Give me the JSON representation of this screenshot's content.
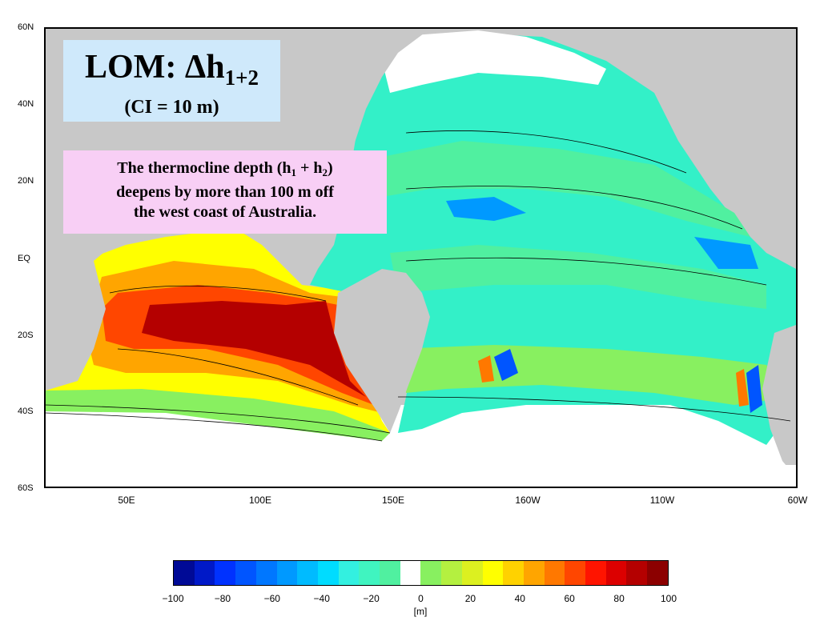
{
  "map": {
    "lat_labels": [
      "60N",
      "40N",
      "20N",
      "EQ",
      "20S",
      "40S",
      "60S"
    ],
    "lon_labels": [
      "50E",
      "100E",
      "150E",
      "160W",
      "110W",
      "60W"
    ]
  },
  "title_box": {
    "main": "LOM: Δh",
    "subscript": "1+2",
    "ci": "(CI = 10 m)",
    "color": "#cfe9fb"
  },
  "note_box": {
    "line1_a": "The thermocline depth (h",
    "sub1": "1",
    "line1_b": " + h",
    "sub2": "2",
    "line1_c": ")",
    "line2": "deepens by more than 100 m off",
    "line3": "the west coast of Australia.",
    "color": "#f8cff5"
  },
  "colorbar": {
    "unit": "[m]",
    "ticks": [
      "−100",
      "−80",
      "−60",
      "−40",
      "−20",
      "0",
      "20",
      "40",
      "60",
      "80",
      "100"
    ],
    "colors": [
      "#000a96",
      "#0019c8",
      "#0032ff",
      "#0055ff",
      "#0077ff",
      "#0099ff",
      "#00bbff",
      "#00dcff",
      "#33f0e0",
      "#40f4c0",
      "#50f0a0",
      "#ffffff",
      "#88f060",
      "#b4f040",
      "#dcf020",
      "#ffff00",
      "#ffd200",
      "#ffa500",
      "#ff7800",
      "#ff4600",
      "#ff1400",
      "#dc0000",
      "#b40000",
      "#8c0000"
    ]
  },
  "land_color": "#c8c8c8",
  "ocean_colors": {
    "cyan": "#33f0c8",
    "green": "#50f0a0",
    "light_green": "#88f060",
    "yellow": "#ffff00",
    "orange": "#ffa500",
    "red": "#ff4600",
    "dark_red": "#b40000",
    "blue": "#0099ff",
    "white": "#ffffff"
  }
}
